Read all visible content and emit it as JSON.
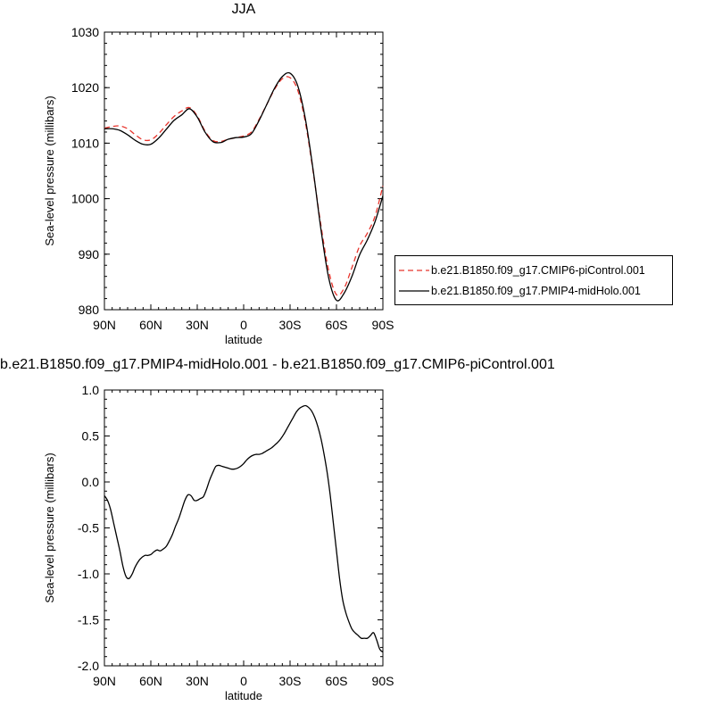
{
  "chart_data": [
    {
      "type": "line",
      "title": "JJA",
      "xlabel": "latitude",
      "ylabel": "Sea-level pressure (millibars)",
      "x_ticks": [
        "90N",
        "60N",
        "30N",
        "0",
        "30S",
        "60S",
        "90S"
      ],
      "x_tick_values": [
        90,
        60,
        30,
        0,
        -30,
        -60,
        -90
      ],
      "y_ticks": [
        "980",
        "990",
        "1000",
        "1010",
        "1020",
        "1030"
      ],
      "y_tick_values": [
        980,
        990,
        1000,
        1010,
        1020,
        1030
      ],
      "xlim": [
        90,
        -90
      ],
      "ylim": [
        980,
        1030
      ],
      "legend_position": "right",
      "series": [
        {
          "name": "b.e21.B1850.f09_g17.CMIP6-piControl.001",
          "color": "#e8342c",
          "dash": "dashed",
          "x": [
            90,
            85,
            80,
            75,
            70,
            65,
            60,
            55,
            50,
            45,
            40,
            35,
            30,
            25,
            20,
            15,
            10,
            5,
            0,
            -5,
            -10,
            -15,
            -20,
            -25,
            -30,
            -35,
            -40,
            -45,
            -50,
            -55,
            -60,
            -65,
            -70,
            -75,
            -80,
            -85,
            -90
          ],
          "y": [
            1012.7,
            1013.0,
            1013.1,
            1012.6,
            1011.5,
            1010.6,
            1010.6,
            1011.7,
            1013.3,
            1014.8,
            1015.8,
            1016.4,
            1014.9,
            1012.2,
            1010.5,
            1010.3,
            1010.7,
            1011.0,
            1011.3,
            1012.0,
            1014.3,
            1017.0,
            1019.7,
            1021.6,
            1021.8,
            1019.5,
            1013.6,
            1004.7,
            995.1,
            987.0,
            982.7,
            983.9,
            987.6,
            991.5,
            993.8,
            996.9,
            1002.3
          ]
        },
        {
          "name": "b.e21.B1850.f09_g17.PMIP4-midHolo.001",
          "color": "#000000",
          "dash": "solid",
          "x": [
            90,
            85,
            80,
            75,
            70,
            65,
            60,
            55,
            50,
            45,
            40,
            35,
            30,
            25,
            20,
            15,
            10,
            5,
            0,
            -5,
            -10,
            -15,
            -20,
            -25,
            -30,
            -35,
            -40,
            -45,
            -50,
            -55,
            -60,
            -65,
            -70,
            -75,
            -80,
            -85,
            -90
          ],
          "y": [
            1012.6,
            1012.6,
            1012.3,
            1011.5,
            1010.5,
            1009.8,
            1009.8,
            1010.9,
            1012.5,
            1014.1,
            1015.1,
            1016.2,
            1014.7,
            1012.0,
            1010.3,
            1010.1,
            1010.7,
            1011.0,
            1011.1,
            1011.7,
            1014.1,
            1017.0,
            1019.9,
            1022.0,
            1022.6,
            1020.3,
            1014.2,
            1005.0,
            994.4,
            985.7,
            981.7,
            983.0,
            986.0,
            989.9,
            992.6,
            995.9,
            1000.5
          ]
        }
      ]
    },
    {
      "type": "line",
      "title": "b.e21.B1850.f09_g17.PMIP4-midHolo.001 - b.e21.B1850.f09_g17.CMIP6-piControl.001",
      "xlabel": "latitude",
      "ylabel": "Sea-level pressure (millibars)",
      "x_ticks": [
        "90N",
        "60N",
        "30N",
        "0",
        "30S",
        "60S",
        "90S"
      ],
      "x_tick_values": [
        90,
        60,
        30,
        0,
        -30,
        -60,
        -90
      ],
      "y_ticks": [
        "-2.0",
        "-1.5",
        "-1.0",
        "-0.5",
        "0.0",
        "0.5",
        "1.0"
      ],
      "y_tick_values": [
        -2.0,
        -1.5,
        -1.0,
        -0.5,
        0.0,
        0.5,
        1.0
      ],
      "xlim": [
        90,
        -90
      ],
      "ylim": [
        -2.0,
        1.0
      ],
      "series": [
        {
          "color": "#000000",
          "dash": "solid",
          "x": [
            90,
            88,
            86,
            84,
            82,
            80,
            78,
            76,
            74,
            72,
            70,
            67,
            64,
            62,
            60,
            58,
            56,
            54,
            52,
            50,
            48,
            46,
            44,
            42,
            40,
            38,
            36,
            34,
            32,
            30,
            28,
            26,
            24,
            22,
            20,
            18,
            16,
            14,
            12,
            10,
            8,
            6,
            4,
            2,
            0,
            -2,
            -4,
            -6,
            -8,
            -10,
            -12,
            -14,
            -16,
            -18,
            -20,
            -22,
            -24,
            -26,
            -28,
            -30,
            -32,
            -34,
            -36,
            -38,
            -40,
            -42,
            -44,
            -46,
            -48,
            -50,
            -52,
            -54,
            -56,
            -58,
            -60,
            -62,
            -64,
            -66,
            -68,
            -70,
            -72,
            -74,
            -76,
            -78,
            -80,
            -82,
            -84,
            -86,
            -88,
            -90
          ],
          "y": [
            -0.15,
            -0.2,
            -0.3,
            -0.45,
            -0.6,
            -0.75,
            -0.92,
            -1.03,
            -1.05,
            -1.0,
            -0.92,
            -0.84,
            -0.8,
            -0.8,
            -0.79,
            -0.76,
            -0.74,
            -0.75,
            -0.73,
            -0.7,
            -0.64,
            -0.57,
            -0.48,
            -0.4,
            -0.3,
            -0.2,
            -0.14,
            -0.15,
            -0.2,
            -0.2,
            -0.18,
            -0.16,
            -0.08,
            0.02,
            0.1,
            0.17,
            0.18,
            0.17,
            0.16,
            0.15,
            0.14,
            0.14,
            0.15,
            0.17,
            0.2,
            0.24,
            0.27,
            0.29,
            0.3,
            0.3,
            0.31,
            0.33,
            0.35,
            0.37,
            0.4,
            0.43,
            0.47,
            0.52,
            0.58,
            0.64,
            0.7,
            0.76,
            0.8,
            0.82,
            0.83,
            0.81,
            0.77,
            0.7,
            0.6,
            0.47,
            0.3,
            0.1,
            -0.15,
            -0.45,
            -0.75,
            -1.05,
            -1.28,
            -1.42,
            -1.52,
            -1.6,
            -1.64,
            -1.67,
            -1.7,
            -1.7,
            -1.7,
            -1.67,
            -1.64,
            -1.72,
            -1.82,
            -1.85
          ]
        }
      ]
    }
  ],
  "legend": {
    "piControl": "b.e21.B1850.f09_g17.CMIP6-piControl.001",
    "midHolo": "b.e21.B1850.f09_g17.PMIP4-midHolo.001"
  }
}
